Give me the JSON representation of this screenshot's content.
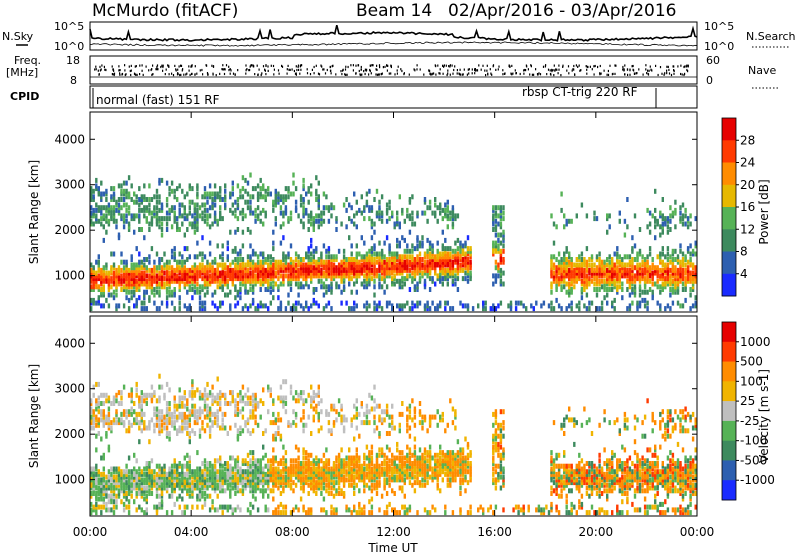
{
  "header": {
    "station": "McMurdo (fitACF)",
    "beam": "Beam 14",
    "date_range": "02/Apr/2016 - 03/Apr/2016"
  },
  "top_panels": {
    "nsky_label": "N.Sky",
    "nsearch_label": "N.Search",
    "nsky_ticks": [
      "10^5",
      "10^0"
    ],
    "nsearch_ticks": [
      "10^5",
      "10^0"
    ],
    "freq_label_1": "Freq.",
    "freq_label_2": "[MHz]",
    "freq_ticks": [
      "18",
      "8"
    ],
    "nave_label": "Nave",
    "nave_ticks": [
      "60",
      "0"
    ],
    "cpid_label": "CPID",
    "cpid_1": "normal (fast) 151 RF",
    "cpid_2": "rbsp CT-trig 220 RF"
  },
  "chart_data": [
    {
      "type": "heatmap",
      "name": "power",
      "ylabel": "Slant Range [km]",
      "xlabel": "",
      "ylim": [
        200,
        4600
      ],
      "x_ticks": [
        "00:00",
        "04:00",
        "08:00",
        "12:00",
        "16:00",
        "20:00",
        "00:00"
      ],
      "x_tick_hours": [
        0,
        4,
        8,
        12,
        16,
        20,
        24
      ],
      "y_ticks": [
        1000,
        2000,
        3000,
        4000
      ],
      "colorbar_label": "Power [dB]",
      "colorbar_ticks": [
        "28",
        "24",
        "20",
        "16",
        "12",
        "8",
        "4"
      ],
      "colorbar_tick_values": [
        28,
        24,
        20,
        16,
        12,
        8,
        4
      ],
      "colorbar_range": [
        0,
        32
      ],
      "colors": [
        "#1a2bff",
        "#2d5fb0",
        "#3d8a5e",
        "#56b256",
        "#e6b800",
        "#ff8c00",
        "#ff3a00",
        "#e60000"
      ]
    },
    {
      "type": "heatmap",
      "name": "velocity",
      "ylabel": "Slant Range [km]",
      "xlabel": "Time UT",
      "ylim": [
        200,
        4600
      ],
      "x_ticks": [
        "00:00",
        "04:00",
        "08:00",
        "12:00",
        "16:00",
        "20:00",
        "00:00"
      ],
      "x_tick_hours": [
        0,
        4,
        8,
        12,
        16,
        20,
        24
      ],
      "y_ticks": [
        1000,
        2000,
        3000,
        4000
      ],
      "colorbar_label": "Velocity [m s-1]",
      "colorbar_ticks": [
        "1000",
        "500",
        "100",
        "25",
        "-25",
        "-100",
        "-500",
        "-1000"
      ],
      "colors": [
        "#1a2bff",
        "#2d5fb0",
        "#3d8a5e",
        "#56b256",
        "#bfbfbf",
        "#f0b400",
        "#ff8c00",
        "#ff3a00",
        "#e60000"
      ]
    }
  ]
}
